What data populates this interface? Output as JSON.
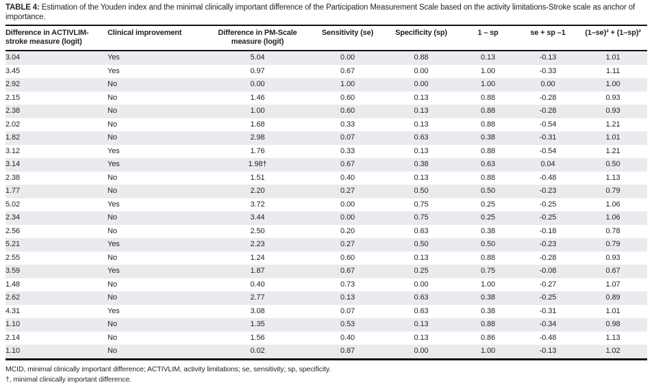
{
  "title": {
    "label": "TABLE 4:",
    "text": "Estimation of the Youden index and the minimal clinically important difference of the Participation Measurement Scale based on the activity limitations-Stroke scale as anchor of importance."
  },
  "colors": {
    "stripe": "#e9ebef",
    "rule": "#0f0f0f",
    "text": "#231f20"
  },
  "table": {
    "columns": [
      {
        "label": "Difference in ACTIVLIM-\nstroke measure (logit)",
        "align": "left"
      },
      {
        "label": "Clinical improvement",
        "align": "left"
      },
      {
        "label": "Difference in PM-Scale\nmeasure (logit)",
        "align": "center"
      },
      {
        "label": "Sensitivity (se)",
        "align": "center"
      },
      {
        "label": "Specificity (sp)",
        "align": "center"
      },
      {
        "label": "1 – sp",
        "align": "center"
      },
      {
        "label": "se + sp –1",
        "align": "center"
      },
      {
        "label": "(1–se)² + (1–sp)²",
        "align": "center"
      }
    ],
    "rows": [
      [
        "3.04",
        "Yes",
        "5.04",
        "0.00",
        "0.88",
        "0.13",
        "-0.13",
        "1.01"
      ],
      [
        "3.45",
        "Yes",
        "0.97",
        "0.67",
        "0.00",
        "1.00",
        "-0.33",
        "1.11"
      ],
      [
        "2.92",
        "No",
        "0.00",
        "1.00",
        "0.00",
        "1.00",
        "0.00",
        "1.00"
      ],
      [
        "2.15",
        "No",
        "1.46",
        "0.60",
        "0.13",
        "0.88",
        "-0.28",
        "0.93"
      ],
      [
        "2.38",
        "No",
        "1.00",
        "0.60",
        "0.13",
        "0.88",
        "-0.28",
        "0.93"
      ],
      [
        "2.02",
        "No",
        "1.68",
        "0.33",
        "0.13",
        "0.88",
        "-0.54",
        "1.21"
      ],
      [
        "1.82",
        "No",
        "2.98",
        "0.07",
        "0.63",
        "0.38",
        "-0.31",
        "1.01"
      ],
      [
        "3.12",
        "Yes",
        "1.76",
        "0.33",
        "0.13",
        "0.88",
        "-0.54",
        "1.21"
      ],
      [
        "3.14",
        "Yes",
        "1.98†",
        "0.67",
        "0.38",
        "0.63",
        "0.04",
        "0.50"
      ],
      [
        "2.38",
        "No",
        "1.51",
        "0.40",
        "0.13",
        "0.88",
        "-0.48",
        "1.13"
      ],
      [
        "1.77",
        "No",
        "2.20",
        "0.27",
        "0.50",
        "0.50",
        "-0.23",
        "0.79"
      ],
      [
        "5.02",
        "Yes",
        "3.72",
        "0.00",
        "0.75",
        "0.25",
        "-0.25",
        "1.06"
      ],
      [
        "2.34",
        "No",
        "3.44",
        "0.00",
        "0.75",
        "0.25",
        "-0.25",
        "1.06"
      ],
      [
        "2.56",
        "No",
        "2.50",
        "0.20",
        "0.63",
        "0.38",
        "-0.18",
        "0.78"
      ],
      [
        "5.21",
        "Yes",
        "2.23",
        "0.27",
        "0.50",
        "0.50",
        "-0.23",
        "0.79"
      ],
      [
        "2.55",
        "No",
        "1.24",
        "0.60",
        "0.13",
        "0.88",
        "-0.28",
        "0.93"
      ],
      [
        "3.59",
        "Yes",
        "1.87",
        "0.67",
        "0.25",
        "0.75",
        "-0.08",
        "0.67"
      ],
      [
        "1.48",
        "No",
        "0.40",
        "0.73",
        "0.00",
        "1.00",
        "-0.27",
        "1.07"
      ],
      [
        "2.62",
        "No",
        "2.77",
        "0.13",
        "0.63",
        "0.38",
        "-0.25",
        "0.89"
      ],
      [
        "4.31",
        "Yes",
        "3.08",
        "0.07",
        "0.63",
        "0.38",
        "-0.31",
        "1.01"
      ],
      [
        "1.10",
        "No",
        "1.35",
        "0.53",
        "0.13",
        "0.88",
        "-0.34",
        "0.98"
      ],
      [
        "2.14",
        "No",
        "1.56",
        "0.40",
        "0.13",
        "0.86",
        "-0.48",
        "1.13"
      ],
      [
        "1.10",
        "No",
        "0.02",
        "0.87",
        "0.00",
        "1.00",
        "-0.13",
        "1.02"
      ]
    ]
  },
  "footnotes": [
    "MCID, minimal clinically important difference; ACTIVLIM, activity limitations; se, sensitivity; sp, specificity.",
    "†, minimal clinically important difference."
  ]
}
